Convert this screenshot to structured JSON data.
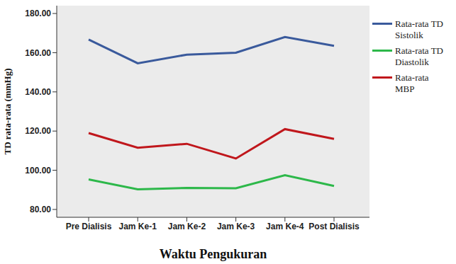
{
  "chart_data": {
    "type": "line",
    "xlabel": "Waktu Pengukuran",
    "ylabel": "TD rata-rata (mmHg)",
    "categories": [
      "Pre Dialisis",
      "Jam Ke-1",
      "Jam Ke-2",
      "Jam Ke-3",
      "Jam Ke-4",
      "Post Dialisis"
    ],
    "ylim": [
      76,
      184
    ],
    "yticks": [
      {
        "value": 80,
        "label": "80.00"
      },
      {
        "value": 100,
        "label": "100.00"
      },
      {
        "value": 120,
        "label": "120.00"
      },
      {
        "value": 140,
        "label": "140.00"
      },
      {
        "value": 160,
        "label": "160.00"
      },
      {
        "value": 180,
        "label": "180.00"
      }
    ],
    "grid": false,
    "legend": "right",
    "series": [
      {
        "name": "Rata-rata TD Sistolik",
        "color": "#3a5a9c",
        "values": [
          166.7,
          154.6,
          159,
          160,
          168,
          163.5
        ]
      },
      {
        "name": "Rata-rata TD Diastolik",
        "color": "#2db84a",
        "values": [
          95.3,
          90.3,
          91,
          90.8,
          97.5,
          92
        ]
      },
      {
        "name": "Rata-rata MBP",
        "color": "#c0171c",
        "values": [
          119,
          111.5,
          113.5,
          106,
          121,
          116
        ]
      }
    ]
  }
}
